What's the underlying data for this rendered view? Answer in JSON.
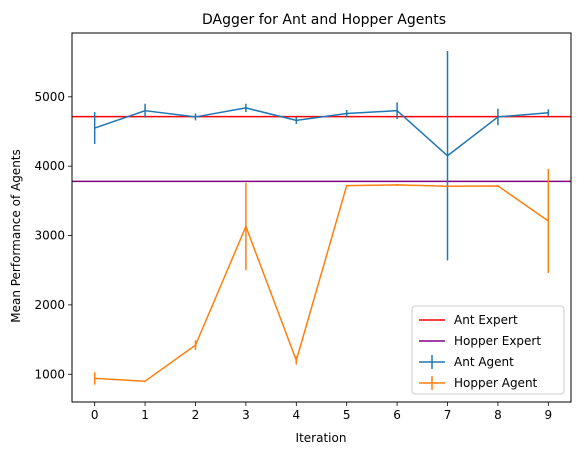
{
  "chart_data": {
    "type": "line",
    "title": "DAgger for Ant and Hopper Agents",
    "xlabel": "Iteration",
    "ylabel": "Mean Performance of Agents",
    "x": [
      0,
      1,
      2,
      3,
      4,
      5,
      6,
      7,
      8,
      9
    ],
    "xlim": [
      -0.45,
      9.45
    ],
    "ylim": [
      600,
      5920
    ],
    "xticks": [
      "0",
      "1",
      "2",
      "3",
      "4",
      "5",
      "6",
      "7",
      "8",
      "9"
    ],
    "yticks": [
      1000,
      2000,
      3000,
      4000,
      5000
    ],
    "grid": false,
    "legend_position": "bottom-right",
    "hlines": [
      {
        "name": "Ant Expert",
        "y": 4715,
        "color": "#ff0000"
      },
      {
        "name": "Hopper Expert",
        "y": 3780,
        "color": "#800080"
      }
    ],
    "series": [
      {
        "name": "Ant Agent",
        "color": "#1f77b4",
        "values": [
          4550,
          4800,
          4710,
          4840,
          4660,
          4760,
          4800,
          4150,
          4710,
          4770
        ],
        "errors": [
          230,
          100,
          50,
          60,
          50,
          50,
          120,
          1510,
          120,
          50
        ]
      },
      {
        "name": "Hopper Agent",
        "color": "#ff7f0e",
        "values": [
          940,
          900,
          1420,
          3130,
          1200,
          3720,
          3730,
          3710,
          3715,
          3210
        ],
        "errors": [
          90,
          10,
          70,
          630,
          60,
          10,
          10,
          10,
          10,
          750
        ]
      }
    ]
  }
}
